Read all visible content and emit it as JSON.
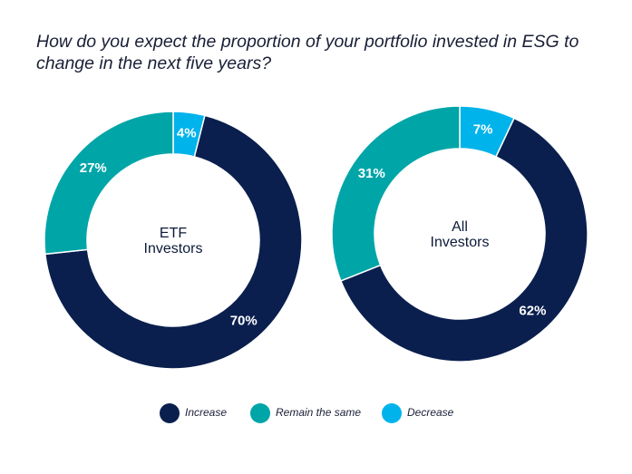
{
  "chart_data": {
    "type": "pie",
    "title": "How do you expect the proportion of your portfolio invested in ESG to change in the next five years?",
    "legend": {
      "placement": "bottom",
      "entries": [
        "Increase",
        "Remain the same",
        "Decrease"
      ]
    },
    "colors": {
      "Increase": "#0a1f4e",
      "Remain the same": "#00a5a8",
      "Decrease": "#00b3eb"
    },
    "charts": [
      {
        "center_label": [
          "ETF",
          "Investors"
        ],
        "slices": [
          {
            "category": "Decrease",
            "value": 4,
            "label": "4%"
          },
          {
            "category": "Increase",
            "value": 70,
            "label": "70%"
          },
          {
            "category": "Remain the same",
            "value": 27,
            "label": "27%"
          }
        ]
      },
      {
        "center_label": [
          "All",
          "Investors"
        ],
        "slices": [
          {
            "category": "Decrease",
            "value": 7,
            "label": "7%"
          },
          {
            "category": "Increase",
            "value": 62,
            "label": "62%"
          },
          {
            "category": "Remain the same",
            "value": 31,
            "label": "31%"
          }
        ]
      }
    ]
  }
}
